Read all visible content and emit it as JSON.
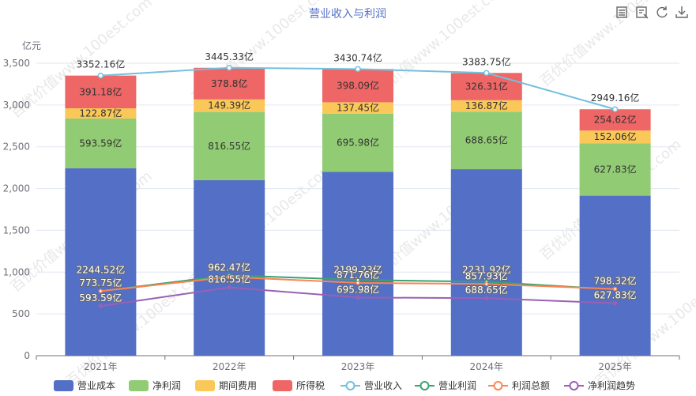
{
  "chart_data": {
    "type": "bar",
    "title": "营业收入与利润",
    "unit_label": "亿元",
    "categories": [
      "2021年",
      "2022年",
      "2023年",
      "2024年",
      "2025年"
    ],
    "ylim": [
      0,
      3500
    ],
    "yticks": [
      "0",
      "500",
      "1,000",
      "1,500",
      "2,000",
      "2,500",
      "3,000",
      "3,500"
    ],
    "ytick_values": [
      0,
      500,
      1000,
      1500,
      2000,
      2500,
      3000,
      3500
    ],
    "grid": true,
    "legend_position": "bottom",
    "stacked_series": [
      {
        "name": "营业成本",
        "color": "#5470c6",
        "values": [
          2244.52,
          2100.6,
          2199.23,
          2231.92,
          1914.65
        ],
        "labels": [
          "2244.52亿",
          "",
          "2199.23亿",
          "2231.92亿",
          ""
        ]
      },
      {
        "name": "净利润",
        "color": "#91cc75",
        "values": [
          593.59,
          816.55,
          695.98,
          688.65,
          627.83
        ],
        "labels": [
          "593.59亿",
          "816.55亿",
          "695.98亿",
          "688.65亿",
          "627.83亿"
        ]
      },
      {
        "name": "期间费用",
        "color": "#fac858",
        "values": [
          122.87,
          149.39,
          137.45,
          136.87,
          152.06
        ],
        "labels": [
          "122.87亿",
          "149.39亿",
          "137.45亿",
          "136.87亿",
          "152.06亿"
        ]
      },
      {
        "name": "所得税",
        "color": "#ee6666",
        "values": [
          391.18,
          378.8,
          398.09,
          326.31,
          254.62
        ],
        "labels": [
          "391.18亿",
          "378.8亿",
          "398.09亿",
          "326.31亿",
          "254.62亿"
        ]
      }
    ],
    "line_series": [
      {
        "name": "营业收入",
        "color": "#73c0de",
        "values": [
          3352.16,
          3445.33,
          3430.74,
          3383.75,
          2949.16
        ],
        "labels": [
          "3352.16亿",
          "3445.33亿",
          "3430.74亿",
          "3383.75亿",
          "2949.16亿"
        ]
      },
      {
        "name": "营业利润",
        "color": "#3ba272",
        "values": [
          773.75,
          962.47,
          907.0,
          884.0,
          793.3
        ],
        "labels": [
          "773.75亿",
          "962.47亿",
          "",
          "",
          ""
        ]
      },
      {
        "name": "利润总额",
        "color": "#fc8452",
        "values": [
          773.75,
          942.0,
          871.76,
          857.93,
          798.32
        ],
        "labels": [
          "",
          "",
          "871.76亿",
          "857.93亿",
          "798.32亿"
        ]
      },
      {
        "name": "净利润趋势",
        "color": "#9a60b4",
        "values": [
          593.59,
          816.55,
          695.98,
          688.65,
          627.83
        ],
        "labels": [
          "593.59亿",
          "816.55亿",
          "695.98亿",
          "688.65亿",
          "627.83亿"
        ]
      }
    ]
  }
}
